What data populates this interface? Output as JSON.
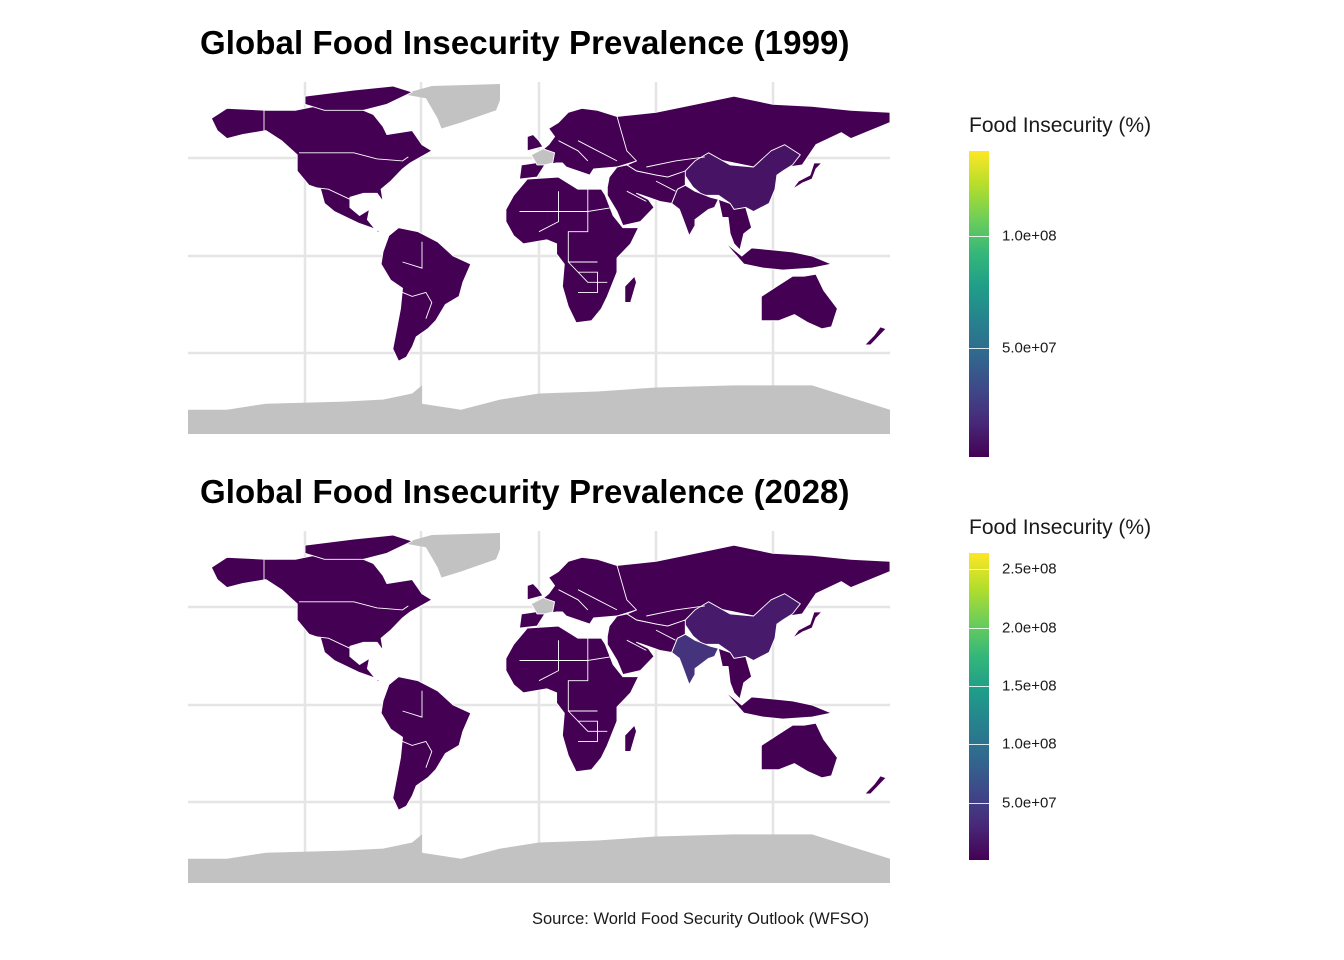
{
  "caption": "Source: World Food Security Outlook (WFSO)",
  "colors": {
    "na_fill": "#c2c2c2",
    "grid": "#e5e5e5",
    "border": "#ffffff",
    "viridis": [
      "#440154",
      "#482878",
      "#3e4989",
      "#31688e",
      "#26828e",
      "#1f9e89",
      "#35b779",
      "#6ece58",
      "#b5de2b",
      "#fde725"
    ]
  },
  "chart_data": [
    {
      "type": "choropleth",
      "title": "Global Food Insecurity Prevalence (1999)",
      "legend": {
        "title": "Food Insecurity (%)",
        "range": [
          1000000,
          138000000
        ],
        "ticks": [
          {
            "value": 100000000,
            "label": "1.0e+08"
          },
          {
            "value": 50000000,
            "label": "5.0e+07"
          }
        ],
        "placement": "right"
      },
      "regions": [
        {
          "name": "China",
          "value": 8000000
        },
        {
          "name": "India",
          "value": 3000000
        },
        {
          "name": "Other countries",
          "value": 1000000
        },
        {
          "name": "Greenland",
          "value": null
        },
        {
          "name": "Antarctica",
          "value": null
        },
        {
          "name": "France",
          "value": null
        }
      ]
    },
    {
      "type": "choropleth",
      "title": "Global Food Insecurity Prevalence (2028)",
      "legend": {
        "title": "Food Insecurity (%)",
        "range": [
          1000000,
          264000000
        ],
        "ticks": [
          {
            "value": 250000000,
            "label": "2.5e+08"
          },
          {
            "value": 200000000,
            "label": "2.0e+08"
          },
          {
            "value": 150000000,
            "label": "1.5e+08"
          },
          {
            "value": 100000000,
            "label": "1.0e+08"
          },
          {
            "value": 50000000,
            "label": "5.0e+07"
          }
        ],
        "placement": "right"
      },
      "regions": [
        {
          "name": "India",
          "value": 40000000
        },
        {
          "name": "China",
          "value": 20000000
        },
        {
          "name": "Other countries",
          "value": 1000000
        },
        {
          "name": "Greenland",
          "value": null
        },
        {
          "name": "Antarctica",
          "value": null
        },
        {
          "name": "France",
          "value": null
        }
      ]
    }
  ]
}
